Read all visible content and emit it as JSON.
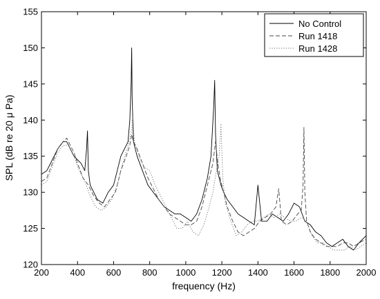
{
  "chart_data": {
    "type": "line",
    "title": "",
    "xlabel": "frequency (Hz)",
    "ylabel": "SPL (dB re 20 μ Pa)",
    "xlim": [
      200,
      2000
    ],
    "ylim": [
      120,
      155
    ],
    "xticks": [
      200,
      400,
      600,
      800,
      1000,
      1200,
      1400,
      1600,
      1800,
      2000
    ],
    "yticks": [
      120,
      125,
      130,
      135,
      140,
      145,
      150,
      155
    ],
    "grid": false,
    "legend_position": "top-right",
    "series": [
      {
        "name": "No Control",
        "style": "solid",
        "color": "#000000",
        "x": [
          200,
          230,
          260,
          290,
          320,
          340,
          360,
          380,
          400,
          420,
          440,
          450,
          455,
          460,
          470,
          490,
          510,
          540,
          570,
          600,
          620,
          640,
          660,
          680,
          690,
          697,
          700,
          703,
          710,
          730,
          760,
          790,
          820,
          850,
          880,
          910,
          940,
          970,
          1000,
          1030,
          1060,
          1090,
          1120,
          1140,
          1155,
          1160,
          1165,
          1175,
          1195,
          1210,
          1230,
          1260,
          1290,
          1320,
          1350,
          1380,
          1400,
          1420,
          1450,
          1480,
          1510,
          1540,
          1570,
          1600,
          1630,
          1660,
          1690,
          1720,
          1750,
          1780,
          1810,
          1840,
          1870,
          1900,
          1930,
          1960,
          2000
        ],
        "values": [
          132.5,
          133,
          134.5,
          136,
          137,
          137,
          136,
          135,
          134.5,
          134,
          133,
          136,
          138.5,
          133,
          131,
          130,
          129,
          128.5,
          130,
          131,
          133,
          135,
          136,
          137,
          140,
          145,
          150,
          143,
          137,
          135,
          133,
          131,
          130,
          129,
          128,
          127.5,
          127,
          127,
          126.5,
          126,
          127,
          129,
          132,
          135,
          142,
          145.5,
          138,
          133,
          131,
          130,
          129,
          128,
          127,
          126.5,
          126,
          125.5,
          131,
          126,
          126,
          127,
          126.5,
          126,
          127,
          128.5,
          128,
          126,
          125.5,
          124.5,
          124,
          123,
          122.5,
          123,
          123.5,
          122.5,
          122,
          123,
          124
        ]
      },
      {
        "name": "Run 1418",
        "style": "dashed",
        "color": "#444444",
        "x": [
          200,
          230,
          260,
          290,
          320,
          340,
          360,
          380,
          400,
          430,
          460,
          490,
          520,
          550,
          580,
          610,
          640,
          670,
          690,
          700,
          710,
          730,
          760,
          790,
          820,
          850,
          880,
          910,
          940,
          970,
          1000,
          1030,
          1060,
          1090,
          1120,
          1150,
          1165,
          1175,
          1190,
          1210,
          1230,
          1260,
          1290,
          1320,
          1350,
          1380,
          1410,
          1440,
          1470,
          1500,
          1515,
          1530,
          1560,
          1590,
          1620,
          1640,
          1650,
          1655,
          1660,
          1670,
          1690,
          1720,
          1750,
          1780,
          1810,
          1840,
          1870,
          1900,
          1930,
          1960,
          2000
        ],
        "values": [
          131.5,
          132,
          134,
          136,
          137,
          137.5,
          136.5,
          135.5,
          134,
          132,
          131,
          129.5,
          128.5,
          128,
          129,
          130,
          133,
          135,
          136.5,
          138,
          137,
          136,
          134,
          132,
          130.5,
          129,
          128,
          127,
          126.5,
          126,
          125.5,
          125.5,
          126,
          128,
          131,
          134,
          137,
          134.5,
          132,
          130,
          128,
          126,
          124.5,
          124,
          124.5,
          125,
          126,
          126.5,
          127,
          128,
          130.5,
          126,
          125.5,
          126,
          127,
          127.5,
          131,
          139,
          130,
          126,
          124.5,
          123.5,
          123,
          122.5,
          122.5,
          122.5,
          123,
          123,
          122.5,
          123,
          123.5
        ]
      },
      {
        "name": "Run 1428",
        "style": "dotted",
        "color": "#666666",
        "x": [
          200,
          230,
          260,
          290,
          320,
          350,
          380,
          410,
          440,
          470,
          500,
          530,
          560,
          590,
          620,
          650,
          680,
          700,
          705,
          715,
          740,
          770,
          800,
          830,
          860,
          890,
          920,
          950,
          980,
          1010,
          1040,
          1070,
          1100,
          1130,
          1150,
          1170,
          1185,
          1195,
          1205,
          1220,
          1250,
          1280,
          1310,
          1340,
          1370,
          1400,
          1430,
          1460,
          1490,
          1520,
          1550,
          1580,
          1610,
          1640,
          1670,
          1700,
          1730,
          1760,
          1790,
          1820,
          1850,
          1880,
          1910,
          1940,
          1970,
          2000
        ],
        "values": [
          131,
          131.5,
          133.5,
          135.5,
          136.5,
          136.5,
          135,
          133,
          131.5,
          129.5,
          128,
          127.5,
          128,
          129,
          131,
          134,
          136.5,
          138.5,
          140.5,
          137,
          135,
          133.5,
          133,
          131,
          129.5,
          128,
          126.5,
          125,
          125,
          126,
          124.5,
          124,
          125.5,
          128,
          130,
          133,
          135,
          139.5,
          132,
          128.5,
          126,
          124,
          124.5,
          125.5,
          126,
          126,
          126.5,
          127,
          126.5,
          127,
          126.5,
          126,
          126,
          126.5,
          126,
          124,
          123,
          123,
          122.5,
          122,
          122,
          122,
          122.5,
          122,
          122.5,
          123
        ]
      }
    ]
  }
}
